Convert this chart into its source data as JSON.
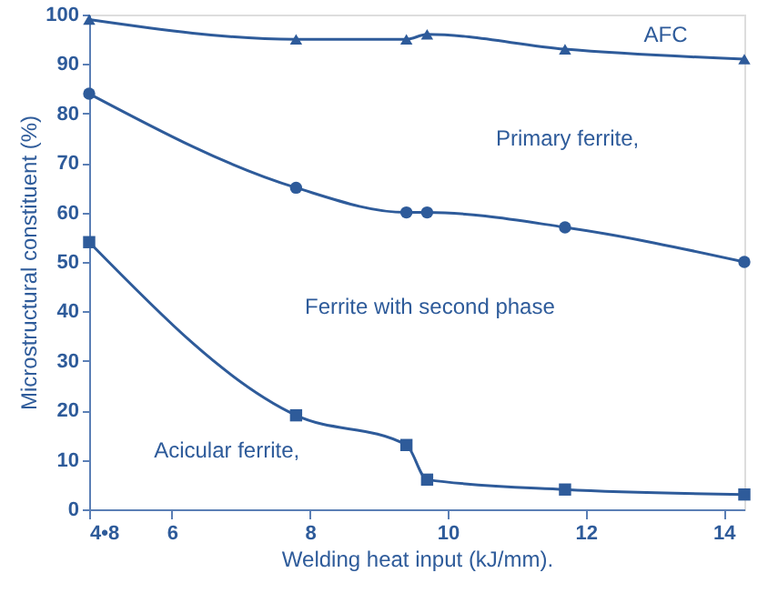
{
  "chart_data": {
    "type": "line",
    "xlabel": "Welding heat input (kJ/mm).",
    "ylabel": "Microstructural  constituent (%)",
    "x": [
      4.8,
      7.8,
      9.4,
      9.7,
      11.7,
      14.3
    ],
    "series": [
      {
        "color": "#2e5b9a",
        "marker": "triangle",
        "values": [
          99,
          95,
          95,
          96,
          93,
          91
        ]
      },
      {
        "color": "#2e5b9a",
        "marker": "circle",
        "values": [
          84,
          65,
          60,
          60,
          57,
          50
        ]
      },
      {
        "color": "#2e5b9a",
        "marker": "square",
        "values": [
          54,
          19,
          13,
          6,
          4,
          3
        ]
      }
    ],
    "xlim": [
      4.8,
      14.3
    ],
    "xticks": [
      {
        "value": 4.8,
        "label": "4•8"
      },
      6,
      8,
      10,
      12,
      14
    ],
    "ylim": [
      0,
      100
    ],
    "yticks": [
      0,
      10,
      20,
      30,
      40,
      50,
      60,
      70,
      80,
      90,
      100
    ],
    "grid": false,
    "line_style": "solid",
    "annotations": [
      "AFC",
      "Primary  ferrite,",
      "Ferrite with second phase",
      "Acicular ferrite,"
    ]
  }
}
